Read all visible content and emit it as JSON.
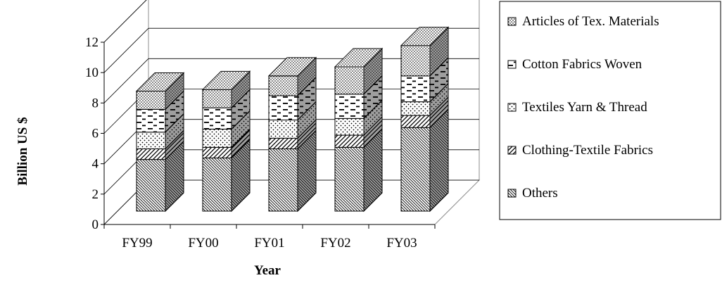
{
  "chart_data": {
    "type": "bar",
    "stacked": true,
    "three_d": true,
    "title": "",
    "xlabel": "Year",
    "ylabel": "Billion US $",
    "ylim": [
      0,
      12
    ],
    "yticks": [
      0,
      2,
      4,
      6,
      8,
      10,
      12
    ],
    "grid": true,
    "legend_position": "right",
    "categories": [
      "FY99",
      "FY00",
      "FY01",
      "FY02",
      "FY03"
    ],
    "series": [
      {
        "name": "Others",
        "values": [
          3.4,
          3.5,
          4.1,
          4.2,
          5.5
        ],
        "pattern": "diag-back-dense"
      },
      {
        "name": "Clothing-Textile Fabrics",
        "values": [
          0.7,
          0.7,
          0.7,
          0.8,
          0.8
        ],
        "pattern": "diag-fwd"
      },
      {
        "name": "Textiles Yarn & Thread",
        "values": [
          1.1,
          1.2,
          1.2,
          1.1,
          0.9
        ],
        "pattern": "sparse-dots"
      },
      {
        "name": "Cotton Fabrics Woven",
        "values": [
          1.5,
          1.4,
          1.6,
          1.6,
          1.7
        ],
        "pattern": "dashes"
      },
      {
        "name": "Articles of Tex. Materials",
        "values": [
          1.2,
          1.2,
          1.3,
          1.8,
          2.0
        ],
        "pattern": "dense-dots"
      }
    ],
    "colors": {
      "ink": "#000000",
      "background": "#ffffff",
      "gridline": "#000000",
      "side_shade": "#bdbdbd",
      "top_shade": "#d9d9d9"
    }
  }
}
